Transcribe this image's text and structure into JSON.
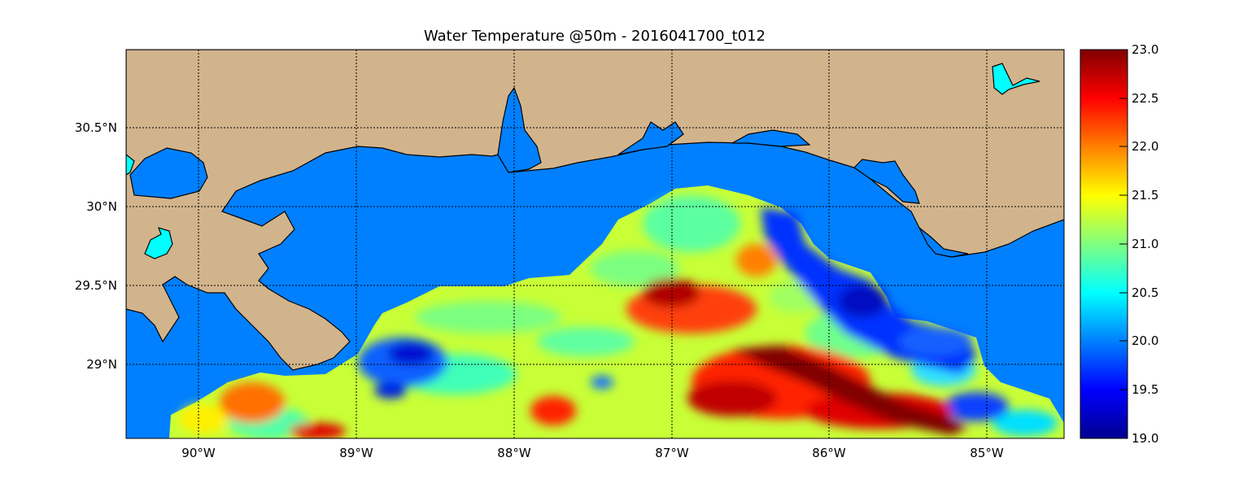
{
  "title": "Water Temperature @50m - 2016041700_t012",
  "colors": {
    "land": "#D2B48C",
    "ocean_background": "#0080FF",
    "lakes": "#00FFFF",
    "coast_line": "#000000",
    "grid_line": "#000000"
  },
  "axes": {
    "x_ticks": [
      {
        "value": -90,
        "label": "90°W"
      },
      {
        "value": -89,
        "label": "89°W"
      },
      {
        "value": -88,
        "label": "88°W"
      },
      {
        "value": -87,
        "label": "87°W"
      },
      {
        "value": -86,
        "label": "86°W"
      },
      {
        "value": -85,
        "label": "85°W"
      }
    ],
    "y_ticks": [
      {
        "value": 30.5,
        "label": "30.5°N"
      },
      {
        "value": 30.0,
        "label": "30°N"
      },
      {
        "value": 29.5,
        "label": "29.5°N"
      },
      {
        "value": 29.0,
        "label": "29°N"
      }
    ],
    "lon_range": [
      -90.47,
      -84.5
    ],
    "lat_range": [
      28.53,
      30.98
    ],
    "grid": "dotted"
  },
  "colorbar": {
    "colormap": "jet",
    "range": [
      19.0,
      23.0
    ],
    "ticks": [
      "23.0",
      "22.5",
      "22.0",
      "21.5",
      "21.0",
      "20.5",
      "20.0",
      "19.5",
      "19.0"
    ]
  }
}
